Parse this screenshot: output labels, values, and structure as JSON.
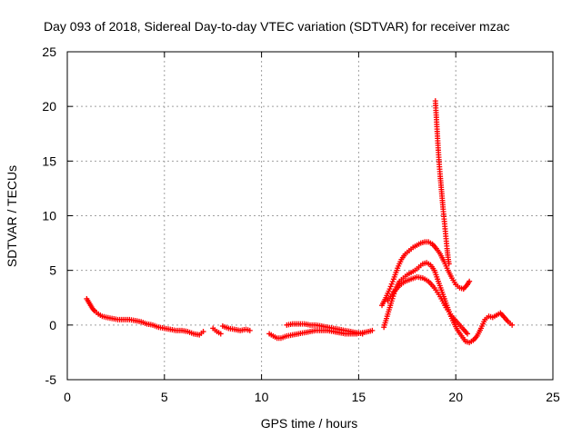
{
  "chart_data": {
    "type": "scatter",
    "title": "Day 093 of 2018, Sidereal Day-to-day VTEC variation (SDTVAR) for receiver mzac",
    "xlabel": "GPS time / hours",
    "ylabel": "SDTVAR / TECUs",
    "xlim": [
      0,
      25
    ],
    "ylim": [
      -5,
      25
    ],
    "xticks": [
      0,
      5,
      10,
      15,
      20,
      25
    ],
    "yticks": [
      -5,
      0,
      5,
      10,
      15,
      20,
      25
    ],
    "grid": true,
    "marker": "plus",
    "color": "#ff0000",
    "series": [
      {
        "name": "track-1",
        "x": [
          1.0,
          1.1,
          1.2,
          1.3,
          1.4,
          1.6,
          1.8,
          2.0,
          2.3,
          2.6,
          2.9,
          3.2,
          3.5,
          3.8,
          4.1,
          4.4,
          4.7,
          5.0,
          5.3,
          5.6,
          5.9,
          6.2,
          6.5,
          6.8,
          7.0
        ],
        "y": [
          2.4,
          2.1,
          1.8,
          1.5,
          1.3,
          1.0,
          0.8,
          0.7,
          0.6,
          0.5,
          0.5,
          0.5,
          0.4,
          0.3,
          0.1,
          0.0,
          -0.2,
          -0.3,
          -0.4,
          -0.5,
          -0.5,
          -0.6,
          -0.8,
          -0.9,
          -0.6
        ]
      },
      {
        "name": "track-2",
        "x": [
          7.5,
          7.7,
          7.9
        ],
        "y": [
          -0.3,
          -0.6,
          -0.8
        ]
      },
      {
        "name": "track-3",
        "x": [
          8.0,
          8.3,
          8.6,
          8.9,
          9.2,
          9.4
        ],
        "y": [
          -0.1,
          -0.3,
          -0.4,
          -0.5,
          -0.4,
          -0.5
        ]
      },
      {
        "name": "track-4",
        "x": [
          10.4,
          10.6,
          10.8,
          11.0,
          11.3,
          11.6,
          11.9,
          12.2,
          12.5,
          12.8,
          13.1,
          13.4,
          13.7,
          14.0,
          14.3,
          14.6,
          14.9,
          15.2,
          15.5,
          15.7
        ],
        "y": [
          -0.8,
          -1.0,
          -1.2,
          -1.2,
          -1.0,
          -0.9,
          -0.8,
          -0.7,
          -0.6,
          -0.5,
          -0.5,
          -0.5,
          -0.6,
          -0.7,
          -0.8,
          -0.8,
          -0.8,
          -0.7,
          -0.6,
          -0.5
        ]
      },
      {
        "name": "track-5",
        "x": [
          11.3,
          11.6,
          11.9,
          12.2,
          12.5,
          12.8,
          13.1,
          13.4,
          13.7,
          14.0,
          14.3,
          14.6,
          14.9,
          15.2
        ],
        "y": [
          0.0,
          0.1,
          0.1,
          0.1,
          0.0,
          0.0,
          -0.1,
          -0.2,
          -0.3,
          -0.4,
          -0.5,
          -0.6,
          -0.7,
          -0.8
        ]
      },
      {
        "name": "track-6",
        "x": [
          16.2,
          16.4,
          16.6,
          16.8,
          17.0,
          17.2,
          17.4,
          17.6,
          17.8,
          18.0,
          18.2,
          18.4,
          18.6,
          18.8,
          19.0,
          19.2,
          19.4,
          19.6,
          19.8,
          20.0,
          20.2,
          20.4,
          20.6,
          20.7
        ],
        "y": [
          1.8,
          2.5,
          3.3,
          4.2,
          5.2,
          6.0,
          6.5,
          6.8,
          7.1,
          7.3,
          7.5,
          7.6,
          7.6,
          7.4,
          7.0,
          6.5,
          5.8,
          5.0,
          4.3,
          3.7,
          3.4,
          3.3,
          3.7,
          4.0
        ]
      },
      {
        "name": "track-7",
        "x": [
          16.3,
          16.5,
          16.7,
          16.9,
          17.1,
          17.3,
          17.5,
          17.7,
          17.9,
          18.1,
          18.3,
          18.5,
          18.7,
          18.9,
          19.1,
          19.3,
          19.5,
          19.7,
          19.9,
          20.1,
          20.3,
          20.5,
          20.7,
          20.9,
          21.1,
          21.3,
          21.5,
          21.7,
          21.9,
          22.1,
          22.3,
          22.5,
          22.7,
          22.9
        ],
        "y": [
          -0.2,
          1.0,
          2.2,
          3.3,
          4.0,
          4.3,
          4.6,
          4.8,
          5.0,
          5.3,
          5.6,
          5.7,
          5.5,
          5.0,
          4.0,
          3.0,
          2.0,
          1.0,
          0.2,
          -0.5,
          -1.0,
          -1.5,
          -1.6,
          -1.4,
          -1.0,
          -0.3,
          0.5,
          0.8,
          0.7,
          0.9,
          1.1,
          0.7,
          0.3,
          0.0
        ]
      },
      {
        "name": "track-8",
        "x": [
          16.5,
          16.8,
          17.1,
          17.4,
          17.7,
          18.0,
          18.3,
          18.6,
          18.9,
          19.2,
          19.5,
          19.8,
          20.1,
          20.4,
          20.6
        ],
        "y": [
          2.2,
          3.0,
          3.6,
          4.0,
          4.2,
          4.4,
          4.3,
          4.0,
          3.4,
          2.6,
          1.6,
          0.8,
          0.2,
          -0.4,
          -0.8
        ]
      },
      {
        "name": "track-9",
        "x": [
          18.95,
          19.0,
          19.05,
          19.1,
          19.15,
          19.2,
          19.25,
          19.3,
          19.35,
          19.4,
          19.45,
          19.5,
          19.55,
          19.6,
          19.65
        ],
        "y": [
          20.5,
          19.0,
          17.5,
          16.0,
          14.7,
          13.6,
          12.6,
          11.6,
          10.6,
          9.7,
          8.8,
          7.9,
          7.0,
          6.2,
          5.6
        ]
      }
    ]
  }
}
